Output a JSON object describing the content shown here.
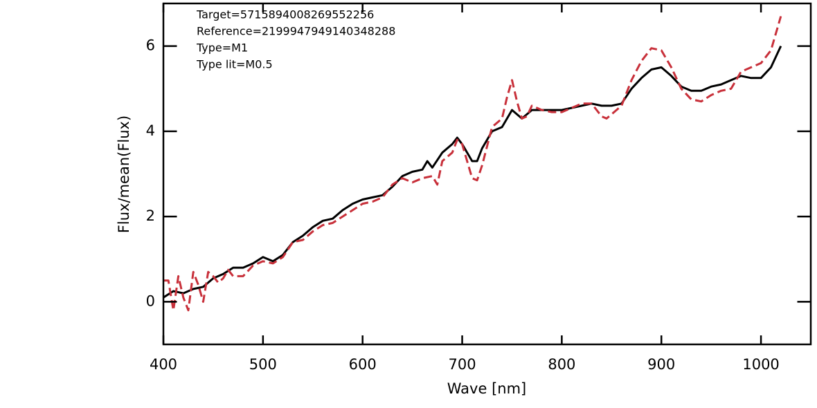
{
  "chart_data": {
    "type": "line",
    "xlabel": "Wave [nm]",
    "ylabel": "Flux/mean(Flux)",
    "annotations": [
      "Target=5715894008269552256",
      "Reference=2199947949140348288",
      "Type=M1",
      "Type lit=M0.5"
    ],
    "xlim": [
      400,
      1050
    ],
    "ylim": [
      -1,
      7
    ],
    "xticks": [
      400,
      500,
      600,
      700,
      800,
      900,
      1000
    ],
    "yticks": [
      0,
      2,
      4,
      6
    ],
    "series": [
      {
        "color": "#000000",
        "dashed": false,
        "x": [
          400,
          410,
          420,
          430,
          440,
          450,
          460,
          470,
          480,
          490,
          500,
          510,
          520,
          530,
          540,
          550,
          560,
          570,
          580,
          590,
          600,
          610,
          620,
          630,
          640,
          650,
          660,
          665,
          670,
          680,
          690,
          695,
          700,
          710,
          715,
          720,
          730,
          740,
          750,
          760,
          770,
          780,
          790,
          800,
          810,
          820,
          830,
          840,
          850,
          860,
          870,
          880,
          890,
          900,
          910,
          920,
          930,
          940,
          950,
          960,
          970,
          980,
          990,
          1000,
          1010,
          1020
        ],
        "values": [
          0.1,
          0.25,
          0.2,
          0.3,
          0.35,
          0.55,
          0.65,
          0.8,
          0.8,
          0.9,
          1.05,
          0.95,
          1.1,
          1.4,
          1.55,
          1.75,
          1.9,
          1.95,
          2.15,
          2.3,
          2.4,
          2.45,
          2.5,
          2.7,
          2.95,
          3.05,
          3.1,
          3.3,
          3.15,
          3.5,
          3.7,
          3.85,
          3.7,
          3.3,
          3.3,
          3.6,
          4.0,
          4.1,
          4.5,
          4.3,
          4.5,
          4.5,
          4.5,
          4.5,
          4.55,
          4.6,
          4.65,
          4.6,
          4.6,
          4.65,
          5.0,
          5.25,
          5.45,
          5.5,
          5.3,
          5.05,
          4.95,
          4.95,
          5.05,
          5.1,
          5.2,
          5.3,
          5.25,
          5.25,
          5.5,
          6.0
        ]
      },
      {
        "color": "#c8303a",
        "dashed": true,
        "x": [
          400,
          405,
          410,
          415,
          420,
          425,
          430,
          435,
          440,
          445,
          450,
          455,
          460,
          465,
          470,
          480,
          490,
          500,
          510,
          520,
          530,
          540,
          550,
          560,
          570,
          580,
          590,
          600,
          610,
          620,
          630,
          640,
          650,
          660,
          670,
          675,
          680,
          690,
          695,
          700,
          710,
          715,
          720,
          730,
          740,
          745,
          750,
          755,
          760,
          765,
          770,
          780,
          790,
          800,
          810,
          820,
          830,
          840,
          845,
          850,
          860,
          870,
          880,
          890,
          900,
          910,
          920,
          930,
          940,
          950,
          960,
          970,
          980,
          990,
          1000,
          1010,
          1020
        ],
        "values": [
          0.5,
          0.5,
          -0.2,
          0.6,
          0.1,
          -0.2,
          0.7,
          0.4,
          0.0,
          0.7,
          0.6,
          0.45,
          0.55,
          0.75,
          0.6,
          0.6,
          0.85,
          0.95,
          0.9,
          1.05,
          1.4,
          1.45,
          1.65,
          1.8,
          1.85,
          2.0,
          2.15,
          2.3,
          2.35,
          2.45,
          2.75,
          2.9,
          2.8,
          2.9,
          2.95,
          2.75,
          3.3,
          3.5,
          3.8,
          3.7,
          2.9,
          2.85,
          3.2,
          4.1,
          4.3,
          4.8,
          5.2,
          4.7,
          4.3,
          4.35,
          4.6,
          4.5,
          4.45,
          4.45,
          4.55,
          4.65,
          4.65,
          4.35,
          4.3,
          4.4,
          4.6,
          5.2,
          5.65,
          5.95,
          5.9,
          5.5,
          5.0,
          4.75,
          4.7,
          4.85,
          4.95,
          5.0,
          5.4,
          5.5,
          5.6,
          5.9,
          6.7
        ]
      }
    ]
  }
}
